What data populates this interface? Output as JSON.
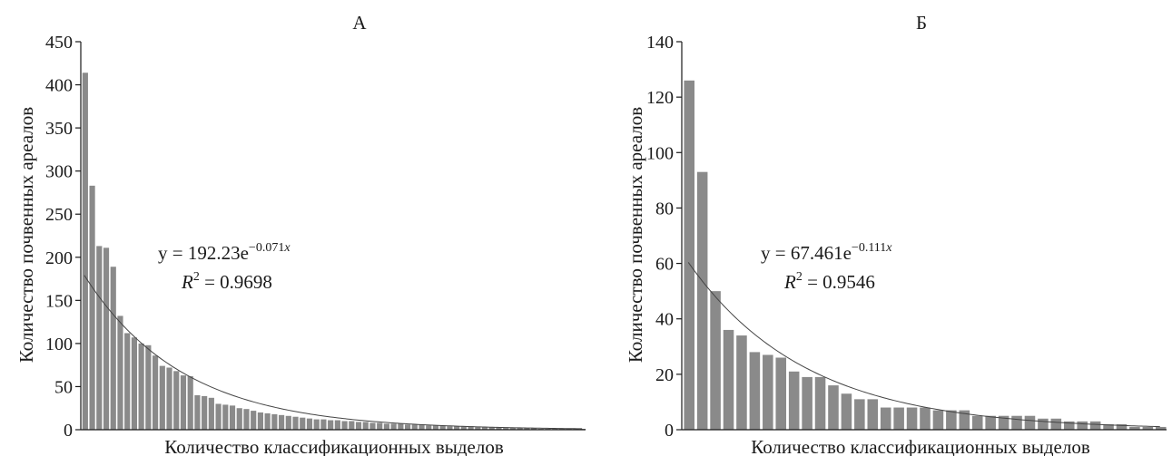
{
  "chart_data": [
    {
      "type": "bar",
      "panel_title": "А",
      "xlabel": "Количество классификационных выделов",
      "ylabel": "Количество почвенных ареалов",
      "ylim": [
        0,
        450
      ],
      "yticks": [
        "0",
        "50",
        "100",
        "150",
        "200",
        "250",
        "300",
        "350",
        "400",
        "450"
      ],
      "values": [
        414,
        283,
        213,
        211,
        189,
        132,
        112,
        107,
        100,
        98,
        86,
        74,
        72,
        68,
        63,
        62,
        40,
        39,
        37,
        30,
        29,
        28,
        25,
        24,
        22,
        20,
        19,
        18,
        17,
        16,
        15,
        14,
        13,
        12,
        12,
        11,
        11,
        10,
        10,
        9,
        9,
        8,
        8,
        7,
        7,
        7,
        6,
        6,
        6,
        5,
        5,
        5,
        4,
        4,
        4,
        4,
        3,
        3,
        3,
        3,
        2,
        2,
        2,
        2,
        2,
        1,
        1,
        1,
        1,
        1,
        1,
        1
      ],
      "trendline": {
        "a": 192.23,
        "b": -0.071
      },
      "equation": {
        "lhs": "y = 192.23e",
        "exponent": "−0.071",
        "exponent_var": "x",
        "r2_label": "R",
        "r2_exp": "2",
        "r2_value": " = 0.9698"
      },
      "bar_color": "#8a8a8a",
      "grid": false
    },
    {
      "type": "bar",
      "panel_title": "Б",
      "xlabel": "Количество классификационных выделов",
      "ylabel": "Количество почвенных ареалов",
      "ylim": [
        0,
        140
      ],
      "yticks": [
        "0",
        "20",
        "40",
        "60",
        "80",
        "100",
        "120",
        "140"
      ],
      "values": [
        126,
        93,
        50,
        36,
        34,
        28,
        27,
        26,
        21,
        19,
        19,
        16,
        13,
        11,
        11,
        8,
        8,
        8,
        8,
        7,
        7,
        7,
        5,
        5,
        5,
        5,
        5,
        4,
        4,
        3,
        3,
        3,
        2,
        2,
        1,
        1,
        1
      ],
      "trendline": {
        "a": 67.461,
        "b": -0.111
      },
      "equation": {
        "lhs": "y = 67.461e",
        "exponent": "−0.111",
        "exponent_var": "x",
        "r2_label": "R",
        "r2_exp": "2",
        "r2_value": " = 0.9546"
      },
      "bar_color": "#8a8a8a",
      "grid": false
    }
  ]
}
